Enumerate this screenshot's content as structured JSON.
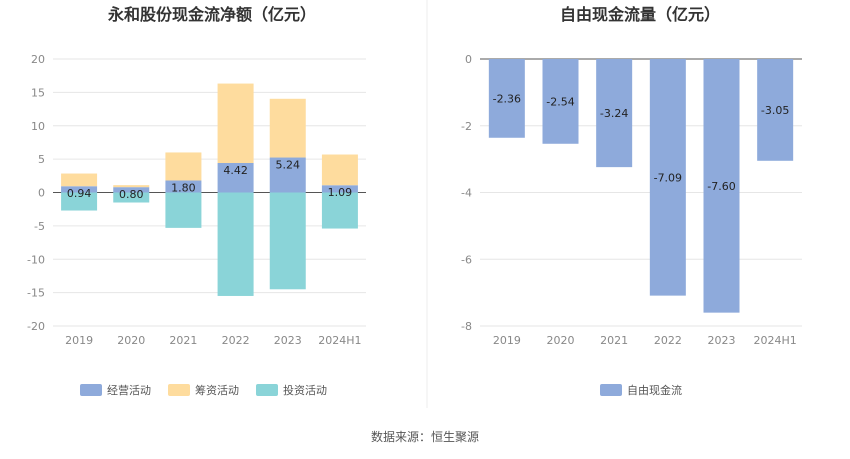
{
  "source_label": "数据来源：恒生聚源",
  "chart_data": [
    {
      "type": "bar",
      "stacked": true,
      "title": "永和股份现金流净额（亿元）",
      "categories": [
        "2019",
        "2020",
        "2021",
        "2022",
        "2023",
        "2024H1"
      ],
      "ylim": [
        -20,
        20
      ],
      "yticks": [
        20,
        15,
        10,
        5,
        0,
        -5,
        -10,
        -15,
        -20
      ],
      "grid": true,
      "legend_position": "bottom",
      "series": [
        {
          "name": "经营活动",
          "color": "#8eaadb",
          "values": [
            0.94,
            0.8,
            1.8,
            4.42,
            5.24,
            1.09
          ],
          "labels": [
            "0.94",
            "0.80",
            "1.80",
            "4.42",
            "5.24",
            "1.09"
          ]
        },
        {
          "name": "筹资活动",
          "color": "#fedc9e",
          "values": [
            1.9,
            0.3,
            4.2,
            11.9,
            8.8,
            4.6
          ]
        },
        {
          "name": "投资活动",
          "color": "#8ad4d8",
          "values": [
            -2.7,
            -1.5,
            -5.3,
            -15.5,
            -14.5,
            -5.4
          ]
        }
      ]
    },
    {
      "type": "bar",
      "title": "自由现金流量（亿元）",
      "categories": [
        "2019",
        "2020",
        "2021",
        "2022",
        "2023",
        "2024H1"
      ],
      "ylim": [
        -8,
        0
      ],
      "yticks": [
        0,
        -2,
        -4,
        -6,
        -8
      ],
      "grid": true,
      "legend_position": "bottom",
      "series": [
        {
          "name": "自由现金流",
          "color": "#8eaadb",
          "values": [
            -2.36,
            -2.54,
            -3.24,
            -7.09,
            -7.6,
            -3.05
          ],
          "labels": [
            "-2.36",
            "-2.54",
            "-3.24",
            "-7.09",
            "-7.60",
            "-3.05"
          ]
        }
      ]
    }
  ]
}
